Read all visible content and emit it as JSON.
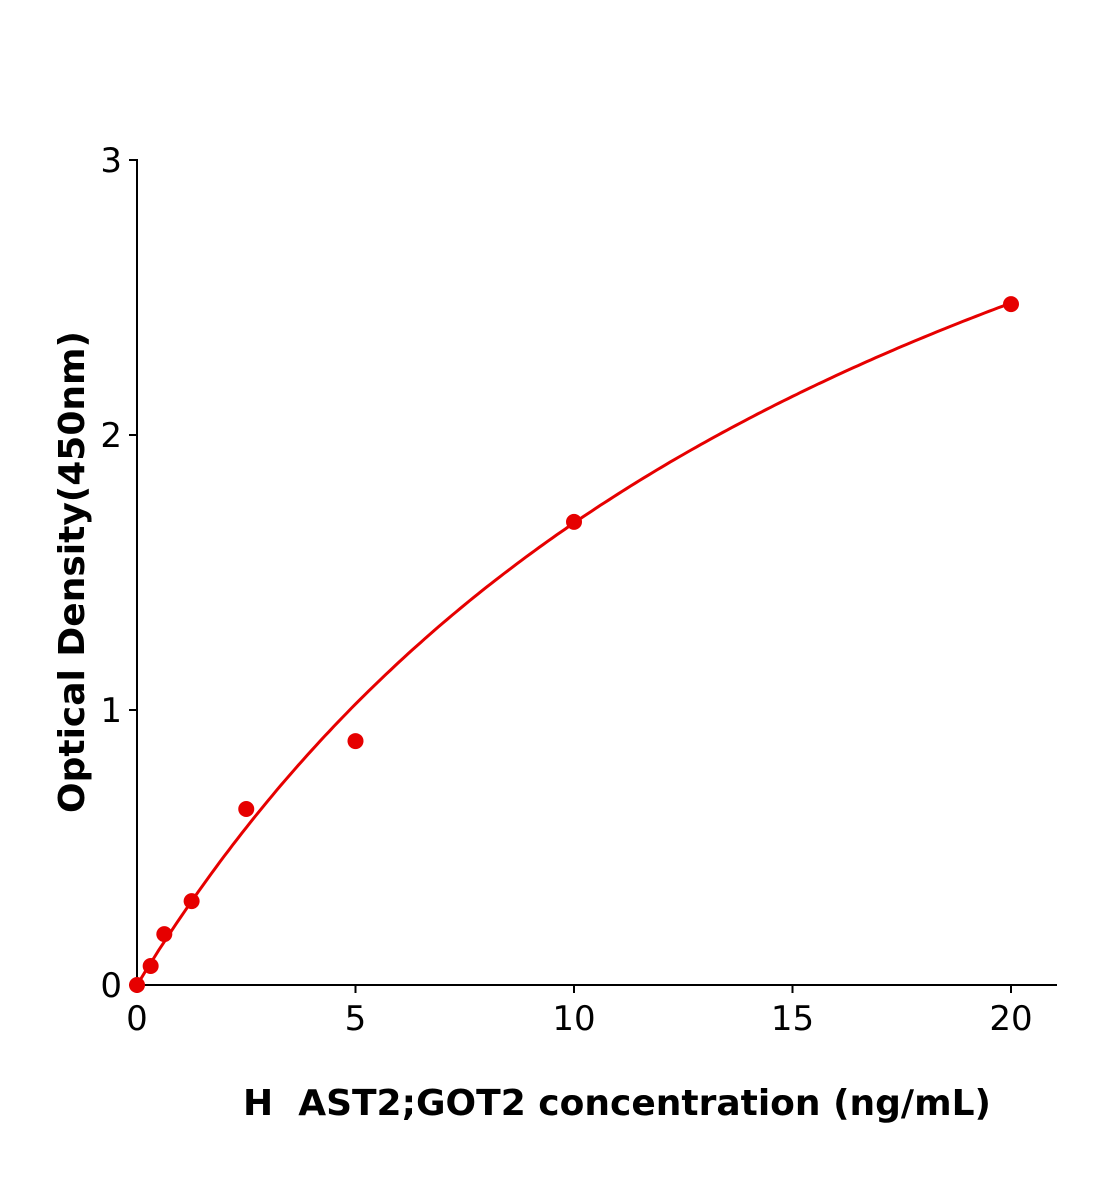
{
  "chart_data": {
    "type": "scatter",
    "title": "",
    "xlabel": "H  AST2;GOT2 concentration (ng/mL)",
    "ylabel": "Optical Density(450nm)",
    "xlim": [
      0,
      21
    ],
    "ylim": [
      0,
      3
    ],
    "xticks": [
      "0",
      "5",
      "10",
      "15",
      "20"
    ],
    "yticks": [
      "0",
      "1",
      "2",
      "3"
    ],
    "grid": false,
    "color": "#e60000",
    "series": [
      {
        "x": [
          0,
          0.3125,
          0.625,
          1.25,
          2.5,
          5,
          10,
          20
        ],
        "y": [
          0.0,
          0.069,
          0.185,
          0.305,
          0.64,
          0.887,
          1.684,
          2.476
        ],
        "fit": "curve"
      }
    ]
  }
}
